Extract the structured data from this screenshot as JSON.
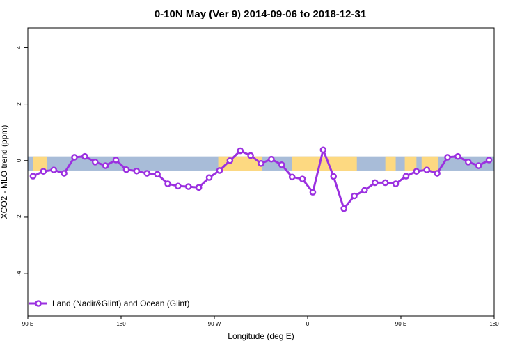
{
  "chart_data": {
    "type": "line",
    "title": "0-10N May (Ver 9)   2014-09-06 to 2018-12-31",
    "xlabel": "Longitude (deg E)",
    "ylabel": "XCO2 - MLO trend (ppm)",
    "xlim": [
      0,
      360
    ],
    "ylim": [
      -5.5,
      4.7
    ],
    "x_ticks": [
      {
        "value": 0,
        "label": "90 E"
      },
      {
        "value": 72,
        "label": "180"
      },
      {
        "value": 144,
        "label": "90 W"
      },
      {
        "value": 216,
        "label": "0"
      },
      {
        "value": 288,
        "label": "90 E"
      },
      {
        "value": 360,
        "label": "180"
      }
    ],
    "y_ticks": [
      -4,
      -2,
      0,
      2,
      4
    ],
    "grid": false,
    "background_band": {
      "y_range": [
        -0.35,
        0.15
      ],
      "ocean_color": "#a8bcd8",
      "land_color": "#fdd981",
      "land_spans": [
        [
          4,
          15
        ],
        [
          147,
          181
        ],
        [
          204,
          254
        ],
        [
          276,
          284
        ],
        [
          291,
          300
        ],
        [
          304,
          317
        ]
      ]
    },
    "series": [
      {
        "name": "Land (Nadir&Glint) and Ocean (Glint)",
        "color": "#9b30e0",
        "x": [
          4,
          12,
          20,
          28,
          36,
          44,
          52,
          60,
          68,
          76,
          84,
          92,
          100,
          108,
          116,
          124,
          132,
          140,
          148,
          156,
          164,
          172,
          180,
          188,
          196,
          204,
          212,
          220,
          228,
          236,
          244,
          252,
          260,
          268,
          276,
          284,
          292,
          300,
          308,
          316,
          324,
          332,
          340,
          348,
          356
        ],
        "values": [
          -0.55,
          -0.38,
          -0.33,
          -0.45,
          0.12,
          0.15,
          -0.05,
          -0.18,
          0.02,
          -0.32,
          -0.37,
          -0.45,
          -0.48,
          -0.82,
          -0.9,
          -0.92,
          -0.95,
          -0.6,
          -0.35,
          0.0,
          0.35,
          0.18,
          -0.1,
          0.05,
          -0.15,
          -0.58,
          -0.65,
          -1.12,
          0.38,
          -0.56,
          -1.7,
          -1.25,
          -1.05,
          -0.78,
          -0.78,
          -0.82,
          -0.55,
          -0.38,
          -0.33,
          -0.45,
          0.12,
          0.15,
          -0.05,
          -0.18,
          0.02
        ]
      }
    ],
    "legend": {
      "position": "bottom-left",
      "entries": [
        "Land (Nadir&Glint) and Ocean (Glint)"
      ]
    }
  }
}
